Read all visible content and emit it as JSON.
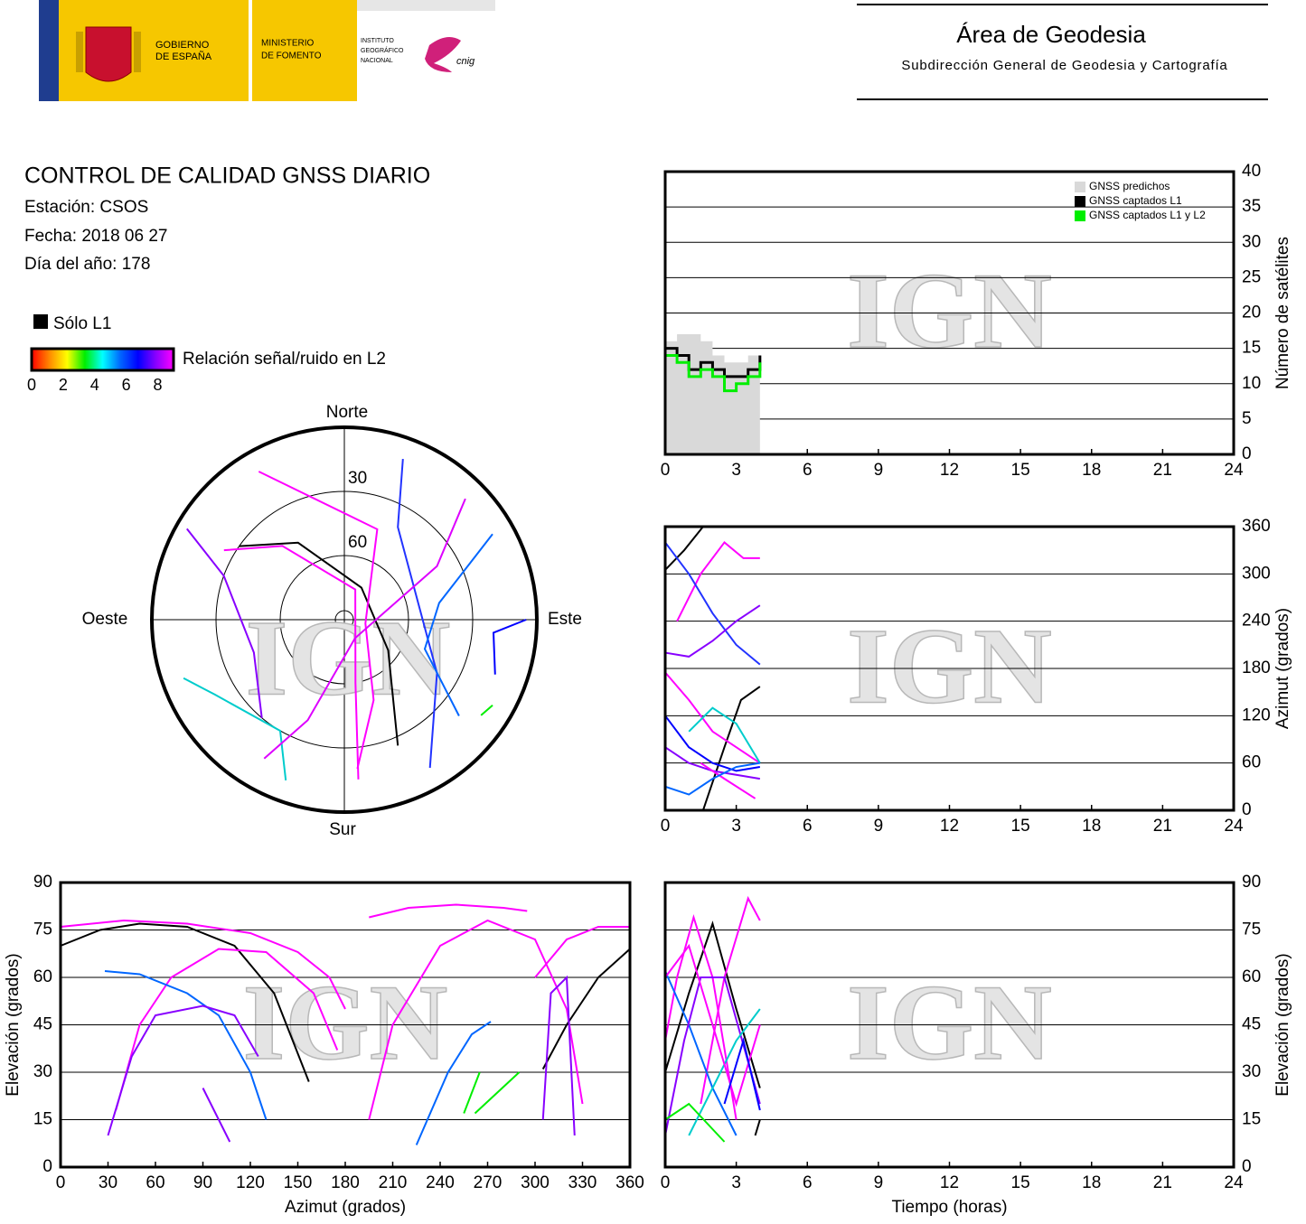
{
  "header": {
    "gobierno": [
      "GOBIERNO",
      "DE ESPAÑA"
    ],
    "ministerio": [
      "MINISTERIO",
      "DE FOMENTO"
    ],
    "instituto": [
      "INSTITUTO",
      "GEOGRÁFICO",
      "NACIONAL"
    ],
    "cnig": "cnig",
    "area": "Área de Geodesia",
    "subdireccion": "Subdirección General de Geodesia y Cartografía"
  },
  "info": {
    "title": "CONTROL DE CALIDAD GNSS DIARIO",
    "station": "Estación: CSOS",
    "date": "Fecha: 2018 06 27",
    "doy": "Día del año: 178"
  },
  "legend": {
    "l1_only": "Sólo L1",
    "l1_color": "#000000",
    "colorbar_label": "Relación señal/ruido en L2",
    "clim": [
      0,
      9
    ],
    "ticks": [
      0,
      2,
      4,
      6,
      8
    ],
    "colors": [
      "#ff0000",
      "#ff8800",
      "#ffff00",
      "#00ee00",
      "#00ffff",
      "#0066ff",
      "#0000ff",
      "#8800ff",
      "#ff00ff"
    ]
  },
  "watermark": "IGN",
  "chart_data": [
    {
      "type": "step",
      "ylabel": "Número de satélites",
      "xlim": [
        0,
        24
      ],
      "xticks": [
        0,
        3,
        6,
        9,
        12,
        15,
        18,
        21,
        24
      ],
      "ylim": [
        0,
        40
      ],
      "yticks": [
        0,
        5,
        10,
        15,
        20,
        25,
        30,
        35,
        40
      ],
      "grid": true,
      "yaxis_position": "right",
      "legend_position": "upper right",
      "series": [
        {
          "name": "GNSS predichos",
          "color": "#d9d9d9",
          "kind": "area",
          "x": [
            0,
            0.5,
            1,
            1.5,
            2,
            2.5,
            3,
            3.5,
            4
          ],
          "values": [
            16,
            17,
            17,
            16,
            14,
            13,
            13,
            14,
            15
          ]
        },
        {
          "name": "GNSS captados L1",
          "color": "#000000",
          "kind": "step",
          "x": [
            0,
            0.5,
            1,
            1.5,
            2,
            2.5,
            3,
            3.5,
            4
          ],
          "values": [
            15,
            14,
            12,
            13,
            12,
            11,
            11,
            12,
            14
          ]
        },
        {
          "name": "GNSS captados L1 y L2",
          "color": "#00ee00",
          "kind": "step",
          "x": [
            0,
            0.5,
            1,
            1.5,
            2,
            2.5,
            3,
            3.5,
            4
          ],
          "values": [
            14,
            13,
            11,
            12,
            11,
            9,
            10,
            11,
            13
          ]
        }
      ]
    },
    {
      "type": "polar",
      "labels": {
        "north": "Norte",
        "east": "Este",
        "south": "Sur",
        "west": "Oeste"
      },
      "rlim": [
        90,
        0
      ],
      "rticks": [
        30,
        60
      ],
      "series": [
        {
          "color": "#000000",
          "azimuth": [
            305,
            329,
            28,
            125,
            157
          ],
          "elevation": [
            30,
            48,
            73,
            65,
            26
          ]
        },
        {
          "color": "#ff00ff",
          "azimuth": [
            300,
            320,
            20,
            170,
            175
          ],
          "elevation": [
            25,
            45,
            75,
            60,
            15
          ]
        },
        {
          "color": "#ff00ff",
          "azimuth": [
            330,
            20,
            100,
            160,
            175
          ],
          "elevation": [
            10,
            45,
            80,
            50,
            20
          ]
        },
        {
          "color": "#2233ff",
          "azimuth": [
            20,
            30,
            120,
            150
          ],
          "elevation": [
            10,
            40,
            40,
            10
          ]
        },
        {
          "color": "#0066ff",
          "azimuth": [
            60,
            80,
            110,
            130
          ],
          "elevation": [
            10,
            45,
            50,
            20
          ]
        },
        {
          "color": "#8800ff",
          "azimuth": [
            300,
            290,
            250,
            220
          ],
          "elevation": [
            5,
            30,
            45,
            30
          ]
        },
        {
          "color": "#00cccc",
          "azimuth": [
            250,
            240,
            210,
            200
          ],
          "elevation": [
            10,
            20,
            30,
            10
          ]
        },
        {
          "color": "#dd00ff",
          "azimuth": [
            45,
            60,
            150,
            200,
            210
          ],
          "elevation": [
            10,
            40,
            80,
            40,
            15
          ]
        },
        {
          "color": "#0000ff",
          "azimuth": [
            90,
            95,
            110
          ],
          "elevation": [
            5,
            20,
            15
          ]
        },
        {
          "color": "#00ee00",
          "azimuth": [
            120,
            125
          ],
          "elevation": [
            10,
            12
          ]
        }
      ]
    },
    {
      "type": "line",
      "ylabel": "Azimut (grados)",
      "xlim": [
        0,
        24
      ],
      "xticks": [
        0,
        3,
        6,
        9,
        12,
        15,
        18,
        21,
        24
      ],
      "ylim": [
        0,
        360
      ],
      "yticks": [
        0,
        60,
        120,
        180,
        240,
        300,
        360
      ],
      "grid": true,
      "yaxis_position": "right",
      "series": [
        {
          "color": "#000000",
          "x": [
            0,
            0.8,
            1.6
          ],
          "values": [
            305,
            330,
            360
          ]
        },
        {
          "color": "#000000",
          "x": [
            1.6,
            2.5,
            3.2,
            4
          ],
          "values": [
            0,
            80,
            140,
            157
          ]
        },
        {
          "color": "#ff00ff",
          "x": [
            0.5,
            1.5,
            2.5,
            3.3,
            4
          ],
          "values": [
            240,
            300,
            340,
            320,
            320
          ]
        },
        {
          "color": "#2233ff",
          "x": [
            0,
            1,
            2,
            3,
            4
          ],
          "values": [
            340,
            300,
            250,
            210,
            185
          ]
        },
        {
          "color": "#8800ff",
          "x": [
            0,
            1,
            2,
            3,
            4
          ],
          "values": [
            200,
            195,
            215,
            240,
            260
          ]
        },
        {
          "color": "#ff00ff",
          "x": [
            0,
            1,
            2,
            3,
            4
          ],
          "values": [
            175,
            140,
            100,
            80,
            60
          ]
        },
        {
          "color": "#0000ff",
          "x": [
            0,
            1,
            2,
            3,
            4
          ],
          "values": [
            120,
            80,
            60,
            50,
            55
          ]
        },
        {
          "color": "#8800ff",
          "x": [
            0,
            1,
            2,
            3,
            4
          ],
          "values": [
            80,
            60,
            50,
            45,
            40
          ]
        },
        {
          "color": "#00cccc",
          "x": [
            1,
            2,
            3,
            4
          ],
          "values": [
            100,
            130,
            110,
            60
          ]
        },
        {
          "color": "#ff00ff",
          "x": [
            1.5,
            2.5,
            3.8
          ],
          "values": [
            60,
            40,
            15
          ]
        },
        {
          "color": "#0066ff",
          "x": [
            0,
            1,
            2,
            3,
            4
          ],
          "values": [
            30,
            20,
            40,
            55,
            60
          ]
        }
      ]
    },
    {
      "type": "line",
      "xlabel": "Azimut (grados)",
      "ylabel": "Elevación (grados)",
      "xlim": [
        0,
        360
      ],
      "xticks": [
        0,
        30,
        60,
        90,
        120,
        150,
        180,
        210,
        240,
        270,
        300,
        330,
        360
      ],
      "ylim": [
        0,
        90
      ],
      "yticks": [
        0,
        15,
        30,
        45,
        60,
        75,
        90
      ],
      "grid": true,
      "yaxis_position": "left",
      "series": [
        {
          "color": "#000000",
          "x": [
            0,
            25,
            50,
            80,
            110,
            135,
            157
          ],
          "values": [
            70,
            75,
            77,
            76,
            70,
            55,
            27
          ]
        },
        {
          "color": "#ff00ff",
          "x": [
            0,
            40,
            80,
            120,
            150,
            170,
            180
          ],
          "values": [
            76,
            78,
            77,
            74,
            68,
            60,
            50
          ]
        },
        {
          "color": "#ff00ff",
          "x": [
            35,
            50,
            70,
            100,
            130,
            160,
            175
          ],
          "values": [
            18,
            45,
            60,
            69,
            68,
            55,
            37
          ]
        },
        {
          "color": "#0066ff",
          "x": [
            28,
            50,
            80,
            100,
            120,
            130
          ],
          "values": [
            62,
            61,
            55,
            48,
            30,
            15
          ]
        },
        {
          "color": "#8800ff",
          "x": [
            30,
            45,
            60,
            90,
            110,
            125
          ],
          "values": [
            10,
            35,
            48,
            51,
            48,
            35
          ]
        },
        {
          "color": "#ff00ff",
          "x": [
            195,
            220,
            250,
            280,
            295
          ],
          "values": [
            79,
            82,
            83,
            82,
            81
          ]
        },
        {
          "color": "#ff00ff",
          "x": [
            195,
            210,
            240,
            270,
            300,
            320,
            330
          ],
          "values": [
            15,
            45,
            70,
            78,
            72,
            50,
            20
          ]
        },
        {
          "color": "#ff00ff",
          "x": [
            300,
            320,
            340,
            360
          ],
          "values": [
            60,
            72,
            76,
            76
          ]
        },
        {
          "color": "#000000",
          "x": [
            305,
            320,
            340,
            360
          ],
          "values": [
            31,
            45,
            60,
            69
          ]
        },
        {
          "color": "#0066ff",
          "x": [
            225,
            245,
            260,
            272
          ],
          "values": [
            7,
            30,
            42,
            46
          ]
        },
        {
          "color": "#8800ff",
          "x": [
            305,
            310,
            320,
            325
          ],
          "values": [
            15,
            55,
            60,
            10
          ]
        },
        {
          "color": "#00ee00",
          "x": [
            255,
            265
          ],
          "values": [
            17,
            30
          ]
        },
        {
          "color": "#00ee00",
          "x": [
            262,
            290
          ],
          "values": [
            17,
            30
          ]
        },
        {
          "color": "#8800ff",
          "x": [
            90,
            107
          ],
          "values": [
            25,
            8
          ]
        }
      ]
    },
    {
      "type": "line",
      "xlabel": "Tiempo (horas)",
      "ylabel": "Elevación (grados)",
      "xlim": [
        0,
        24
      ],
      "xticks": [
        0,
        3,
        6,
        9,
        12,
        15,
        18,
        21,
        24
      ],
      "ylim": [
        0,
        90
      ],
      "yticks": [
        0,
        15,
        30,
        45,
        60,
        75,
        90
      ],
      "grid": true,
      "yaxis_position": "right",
      "series": [
        {
          "color": "#000000",
          "x": [
            0,
            1,
            2,
            3,
            4
          ],
          "values": [
            30,
            55,
            77,
            50,
            25
          ]
        },
        {
          "color": "#ff00ff",
          "x": [
            0,
            0.5,
            1.2,
            2,
            3
          ],
          "values": [
            40,
            60,
            79,
            60,
            15
          ]
        },
        {
          "color": "#ff00ff",
          "x": [
            1.5,
            2.5,
            3.5,
            4
          ],
          "values": [
            20,
            60,
            85,
            78
          ]
        },
        {
          "color": "#0066ff",
          "x": [
            0,
            1,
            2,
            3
          ],
          "values": [
            62,
            45,
            25,
            10
          ]
        },
        {
          "color": "#8800ff",
          "x": [
            0,
            0.8,
            1.5,
            2.5,
            4
          ],
          "values": [
            10,
            40,
            60,
            60,
            20
          ]
        },
        {
          "color": "#00cccc",
          "x": [
            1,
            2,
            3,
            4
          ],
          "values": [
            10,
            25,
            40,
            50
          ]
        },
        {
          "color": "#ff00ff",
          "x": [
            0,
            1,
            2,
            3,
            4
          ],
          "values": [
            60,
            70,
            45,
            20,
            45
          ]
        },
        {
          "color": "#0000ff",
          "x": [
            2.5,
            3.3,
            4
          ],
          "values": [
            20,
            40,
            18
          ]
        },
        {
          "color": "#00ee00",
          "x": [
            0,
            1,
            2.5
          ],
          "values": [
            15,
            20,
            8
          ]
        },
        {
          "color": "#000000",
          "x": [
            3.8,
            4
          ],
          "values": [
            10,
            15
          ]
        }
      ]
    }
  ]
}
